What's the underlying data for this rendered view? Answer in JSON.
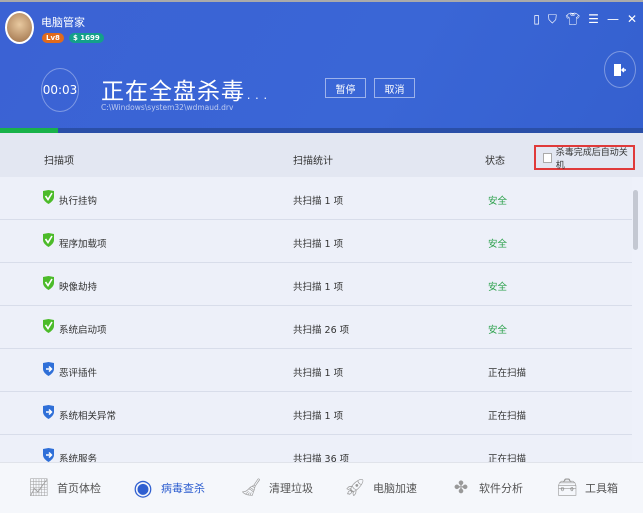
{
  "app": {
    "name": "电脑管家",
    "level": "Lv8",
    "coins": "$ 1699"
  },
  "window_icons": [
    "phone-icon",
    "shield-icon",
    "skin-icon",
    "menu-icon",
    "minimize-icon",
    "close-icon"
  ],
  "scan": {
    "timer": "00:03",
    "title": "正在全盘杀毒...",
    "path": "C:\\Windows\\system32\\wdmaud.drv",
    "pause": "暂停",
    "cancel": "取消",
    "progress_percent": 9
  },
  "table": {
    "headers": {
      "item": "扫描项",
      "stats": "扫描统计",
      "status": "状态"
    },
    "auto_shutdown": "杀毒完成后自动关机",
    "auto_shutdown_checked": false,
    "rows": [
      {
        "name": "执行挂钩",
        "stats": "共扫描 1 项",
        "status": "安全",
        "state": "safe"
      },
      {
        "name": "程序加载项",
        "stats": "共扫描 1 项",
        "status": "安全",
        "state": "safe"
      },
      {
        "name": "映像劫持",
        "stats": "共扫描 1 项",
        "status": "安全",
        "state": "safe"
      },
      {
        "name": "系统启动项",
        "stats": "共扫描 26 项",
        "status": "安全",
        "state": "safe"
      },
      {
        "name": "恶评插件",
        "stats": "共扫描 1 项",
        "status": "正在扫描",
        "state": "scanning"
      },
      {
        "name": "系统相关异常",
        "stats": "共扫描 1 项",
        "status": "正在扫描",
        "state": "scanning"
      },
      {
        "name": "系统服务",
        "stats": "共扫描 36 项",
        "status": "正在扫描",
        "state": "scanning"
      }
    ]
  },
  "nav": [
    {
      "label": "首页体检",
      "icon": "monitor-icon"
    },
    {
      "label": "病毒查杀",
      "icon": "virus-scan-icon",
      "active": true
    },
    {
      "label": "清理垃圾",
      "icon": "broom-icon"
    },
    {
      "label": "电脑加速",
      "icon": "rocket-icon"
    },
    {
      "label": "软件分析",
      "icon": "clover-icon"
    },
    {
      "label": "工具箱",
      "icon": "toolbox-icon"
    }
  ],
  "colors": {
    "header_blue": "#3a66d6",
    "progress_green": "#19b24a",
    "safe_green": "#2aa04a",
    "active_blue": "#2f5fd0",
    "highlight_red": "#e03a3a"
  }
}
